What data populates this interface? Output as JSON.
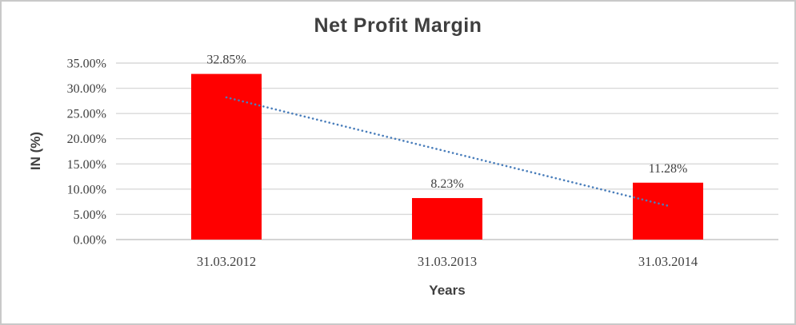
{
  "chart_data": {
    "type": "bar",
    "title": "Net Profit Margin",
    "xlabel": "Years",
    "ylabel": "IN (%)",
    "categories": [
      "31.03.2012",
      "31.03.2013",
      "31.03.2014"
    ],
    "values": [
      32.85,
      8.23,
      11.28
    ],
    "data_labels": [
      "32.85%",
      "8.23%",
      "11.28%"
    ],
    "ylim": [
      0,
      35
    ],
    "ytick_step": 5,
    "ytick_labels": [
      "0.00%",
      "5.00%",
      "10.00%",
      "15.00%",
      "20.00%",
      "25.00%",
      "30.00%",
      "35.00%"
    ],
    "grid": true,
    "legend": "none",
    "bar_color": "#ff0000",
    "gridline_color": "#d9d9d9",
    "axis_line_color": "#c6c6c6",
    "text_color": "#404040",
    "title_color": "#3f3f3f",
    "trendline": {
      "type": "linear",
      "style": "dotted",
      "color": "#4a7ebb",
      "start_value": 28.2,
      "end_value": 6.7
    }
  }
}
